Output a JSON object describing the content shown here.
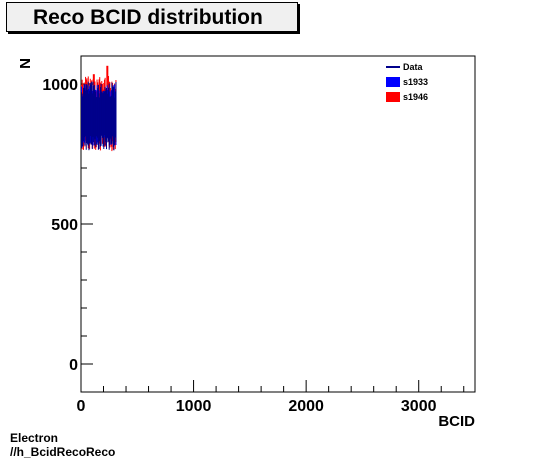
{
  "chart_data": {
    "type": "bar",
    "title": "Reco BCID distribution",
    "xlabel": "BCID",
    "ylabel": "N",
    "xlim": [
      0,
      3500
    ],
    "ylim": [
      -100,
      1100
    ],
    "xticks": [
      0,
      1000,
      2000,
      3000
    ],
    "yticks": [
      0,
      500,
      1000
    ],
    "xtick_labels": [
      "0",
      "1000",
      "2000",
      "3000"
    ],
    "ytick_labels": [
      "0",
      "500",
      "1000"
    ],
    "legend_position": "top-right",
    "legend": [
      {
        "name": "Data",
        "style": "line",
        "color": "#00008b"
      },
      {
        "name": "s1933",
        "style": "fill",
        "color": "#0000ff"
      },
      {
        "name": "s1946",
        "style": "fill",
        "color": "#ff0000"
      }
    ],
    "series": [
      {
        "name": "s1946",
        "color": "#ff0000",
        "x_range": [
          0,
          310
        ],
        "y_low": 760,
        "y_high": 1030,
        "peak": [
          {
            "x": 225,
            "y": 1065
          },
          {
            "x": 105,
            "y": 1035
          }
        ]
      },
      {
        "name": "s1933",
        "color": "#0000ff",
        "x_range": [
          0,
          310
        ],
        "y_low": 780,
        "y_high": 1000
      },
      {
        "name": "Data",
        "color": "#00008b",
        "x_range": [
          0,
          310
        ],
        "y_low": 760,
        "y_high": 1010
      }
    ]
  },
  "footer": {
    "line1": "Electron",
    "line2": "//h_BcidRecoReco"
  }
}
